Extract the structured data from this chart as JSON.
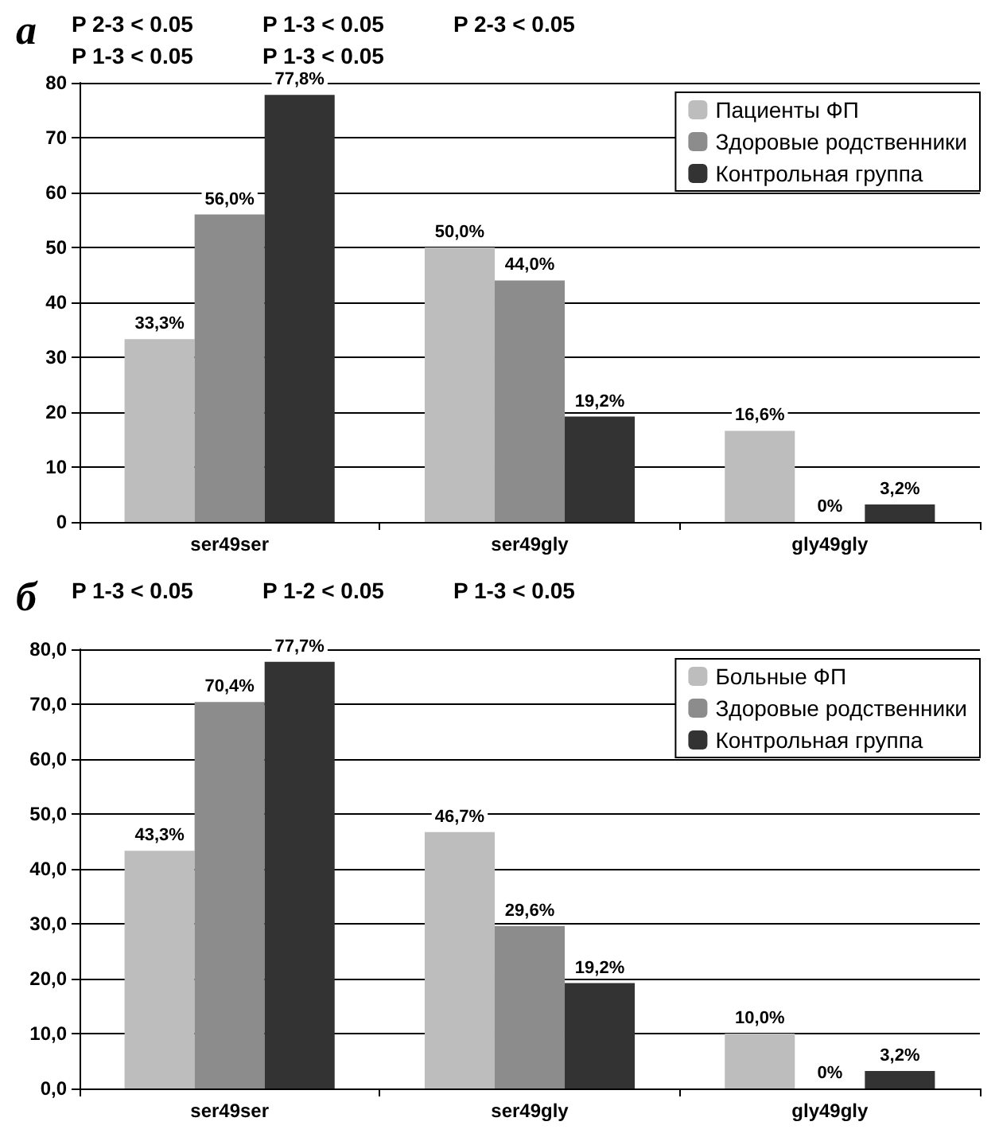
{
  "chart_data": [
    {
      "type": "bar",
      "title": "а",
      "categories": [
        "ser49ser",
        "ser49gly",
        "gly49gly"
      ],
      "series": [
        {
          "name": "Пациенты ФП",
          "color": "#bdbdbd",
          "values": [
            33.3,
            50.0,
            16.6
          ],
          "value_labels": [
            "33,3%",
            "50,0%",
            "16,6%"
          ]
        },
        {
          "name": "Здоровые родственники",
          "color": "#8c8c8c",
          "values": [
            56.0,
            44.0,
            0
          ],
          "value_labels": [
            "56,0%",
            "44,0%",
            "0%"
          ]
        },
        {
          "name": "Контрольная группа",
          "color": "#333333",
          "values": [
            77.8,
            19.2,
            3.2
          ],
          "value_labels": [
            "77,8%",
            "19,2%",
            "3,2%"
          ]
        }
      ],
      "ylim": [
        0,
        80
      ],
      "yticks": [
        0,
        10,
        20,
        30,
        40,
        50,
        60,
        70,
        80
      ],
      "grid": "y",
      "legend": "top right",
      "annotations": [
        "P 2-3 < 0.05",
        "P 1-3 < 0.05",
        "P 2-3 < 0.05",
        "P 1-3 < 0.05",
        "P 1-3 < 0.05"
      ]
    },
    {
      "type": "bar",
      "title": "б",
      "categories": [
        "ser49ser",
        "ser49gly",
        "gly49gly"
      ],
      "series": [
        {
          "name": "Больные ФП",
          "color": "#bdbdbd",
          "values": [
            43.3,
            46.7,
            10.0
          ],
          "value_labels": [
            "43,3%",
            "46,7%",
            "10,0%"
          ]
        },
        {
          "name": "Здоровые родственники",
          "color": "#8c8c8c",
          "values": [
            70.4,
            29.6,
            0
          ],
          "value_labels": [
            "70,4%",
            "29,6%",
            "0%"
          ]
        },
        {
          "name": "Контрольная группа",
          "color": "#333333",
          "values": [
            77.7,
            19.2,
            3.2
          ],
          "value_labels": [
            "77,7%",
            "19,2%",
            "3,2%"
          ]
        }
      ],
      "ylim": [
        0,
        80
      ],
      "yticks": [
        {
          "value": 0,
          "label": "0,0"
        },
        {
          "value": 10,
          "label": "10,0"
        },
        {
          "value": 20,
          "label": "20,0"
        },
        {
          "value": 30,
          "label": "30,0"
        },
        {
          "value": 40,
          "label": "40,0"
        },
        {
          "value": 50,
          "label": "50,0"
        },
        {
          "value": 60,
          "label": "60,0"
        },
        {
          "value": 70,
          "label": "70,0"
        },
        {
          "value": 80,
          "label": "80,0"
        }
      ],
      "grid": "y",
      "legend": "top right",
      "annotations": [
        "P 1-3 < 0.05",
        "P 1-2 < 0.05",
        "P 1-3 < 0.05"
      ]
    }
  ]
}
